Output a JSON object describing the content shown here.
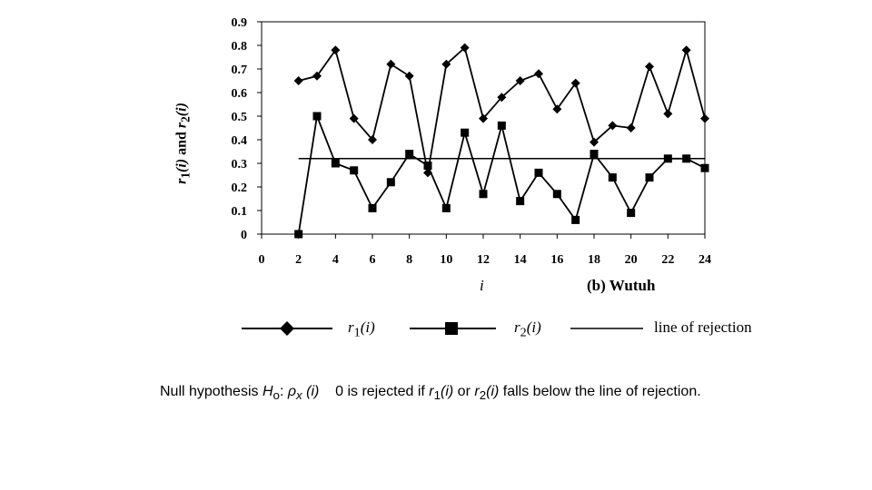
{
  "chart_data": {
    "type": "line",
    "x": [
      2,
      3,
      4,
      5,
      6,
      7,
      8,
      9,
      10,
      11,
      12,
      13,
      14,
      15,
      16,
      17,
      18,
      19,
      20,
      21,
      22,
      23,
      24
    ],
    "series": [
      {
        "name": "r1(i)",
        "marker": "diamond",
        "values": [
          0.65,
          0.67,
          0.78,
          0.49,
          0.4,
          0.72,
          0.67,
          0.26,
          0.72,
          0.79,
          0.49,
          0.58,
          0.65,
          0.68,
          0.53,
          0.64,
          0.39,
          0.46,
          0.45,
          0.71,
          0.51,
          0.78,
          0.49
        ]
      },
      {
        "name": "r2(i)",
        "marker": "square",
        "values": [
          0.0,
          0.5,
          0.3,
          0.27,
          0.11,
          0.22,
          0.34,
          0.29,
          0.11,
          0.43,
          0.17,
          0.46,
          0.14,
          0.26,
          0.17,
          0.06,
          0.34,
          0.24,
          0.09,
          0.24,
          0.32,
          0.32,
          0.28
        ]
      },
      {
        "name": "line of rejection",
        "marker": "none",
        "x_range": [
          2,
          24
        ],
        "value": 0.32
      }
    ],
    "xticks": [
      "0",
      "2",
      "4",
      "6",
      "8",
      "10",
      "12",
      "14",
      "16",
      "18",
      "20",
      "22",
      "24"
    ],
    "yticks": [
      "0",
      "0.1",
      "0.2",
      "0.3",
      "0.4",
      "0.5",
      "0.6",
      "0.7",
      "0.8",
      "0.9"
    ],
    "xlim": [
      0,
      24
    ],
    "ylim": [
      0,
      0.9
    ],
    "xlabel": "i",
    "ylabel": "r1(i) and r2(i)",
    "subtitle": "(b) Wutuh",
    "grid": false,
    "legend_position": "bottom"
  },
  "legend": {
    "r1_main": "r",
    "r1_sub": "1",
    "r1_arg": "(i)",
    "r2_main": "r",
    "r2_sub": "2",
    "r2_arg": "(i)",
    "rejection": "line of rejection"
  },
  "note": {
    "prefix": "Null hypothesis ",
    "h_main": "H",
    "h_sub": "o",
    "colon": ": ",
    "rho": "ρ",
    "rho_sub": "x",
    "rho_arg": " (i)",
    "middle": "    0 is rejected if ",
    "r1": "r",
    "r1_sub": "1",
    "r1_arg": "(i)",
    "or": " or ",
    "r2": "r",
    "r2_sub": "2",
    "r2_arg": "(i)",
    "suffix": " falls below the line of rejection."
  },
  "colors": {
    "line": "#000000",
    "background": "#ffffff"
  }
}
